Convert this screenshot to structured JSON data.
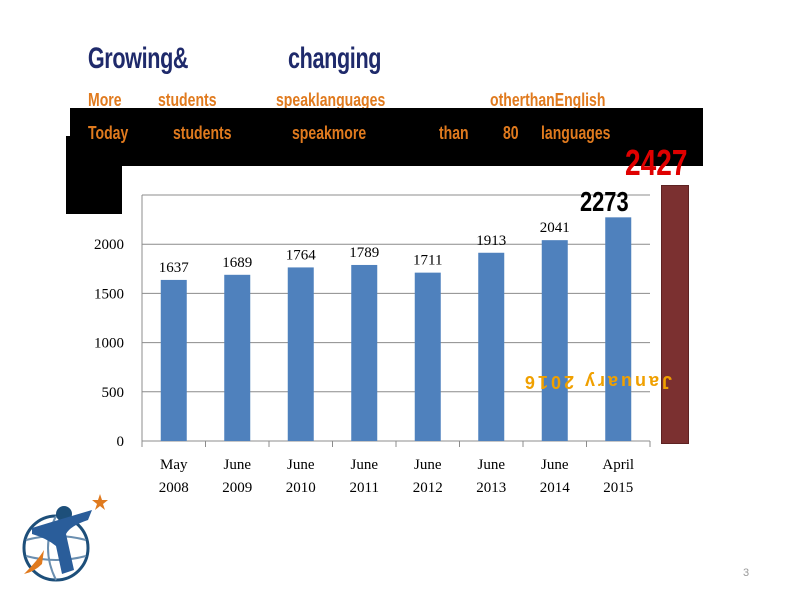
{
  "title": {
    "w1": "Growing&",
    "w2": "changing"
  },
  "line1": {
    "w1": "More",
    "w2": "students",
    "w3": "speaklanguages",
    "w4": "otherthanEnglish"
  },
  "line2": {
    "w1": "Today",
    "w2": "students",
    "w3": "speakmore",
    "w4": "than",
    "w5": "80",
    "w6": "languages"
  },
  "callouts": {
    "top_value": "2427",
    "second_value": "2273",
    "mirrored_text": "January 2016"
  },
  "page_number": "3",
  "colors": {
    "bar": "#4f81bd",
    "accent_red": "#e00000",
    "side_bar": "#7b3030",
    "title": "#1f2a6b",
    "subtitle": "#e07a1e"
  },
  "chart_data": {
    "type": "bar",
    "categories": [
      [
        "May",
        "2008"
      ],
      [
        "June",
        "2009"
      ],
      [
        "June",
        "2010"
      ],
      [
        "June",
        "2011"
      ],
      [
        "June",
        "2012"
      ],
      [
        "June",
        "2013"
      ],
      [
        "June",
        "2014"
      ],
      [
        "April",
        "2015"
      ]
    ],
    "values": [
      1637,
      1689,
      1764,
      1789,
      1711,
      1913,
      2041,
      2273
    ],
    "data_labels": [
      "1637",
      "1689",
      "1764",
      "1789",
      "1711",
      "1913",
      "2041",
      ""
    ],
    "yticks": [
      0,
      500,
      1000,
      1500,
      2000
    ],
    "ylim": [
      0,
      2500
    ],
    "grid": true,
    "title": "",
    "xlabel": "",
    "ylabel": ""
  }
}
